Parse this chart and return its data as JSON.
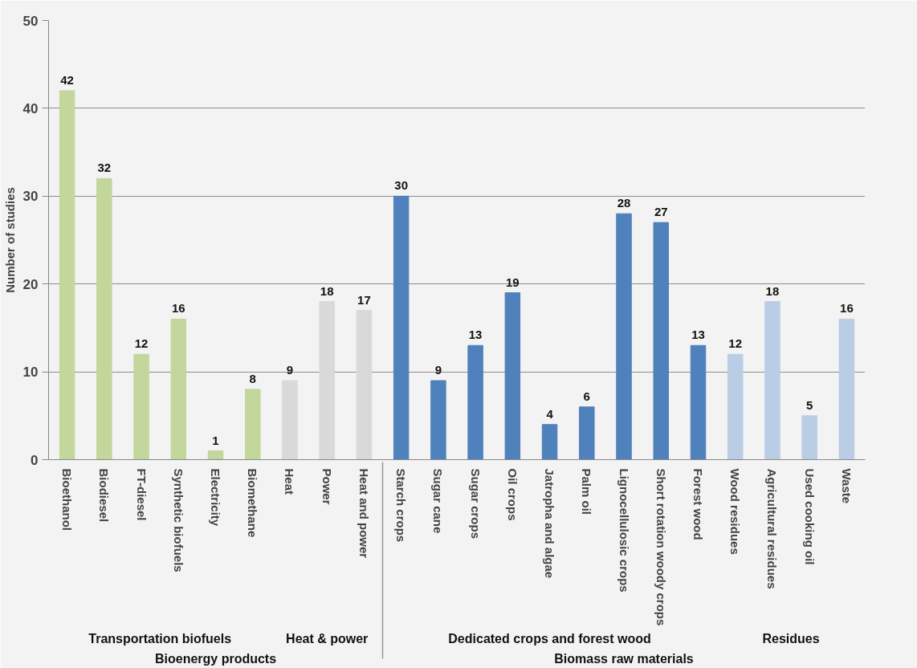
{
  "chart_data": {
    "type": "bar",
    "ylabel": "Number of studies",
    "categories": [
      "Bioethanol",
      "Biodiesel",
      "FT-diesel",
      "Synthetic biofuels",
      "Electricity",
      "Biomethane",
      "Heat",
      "Power",
      "Heat and power",
      "Starch crops",
      "Sugar cane",
      "Sugar crops",
      "Oil crops",
      "Jatropha and algae",
      "Palm oil",
      "Lignocellulosic crops",
      "Short rotation woody crops",
      "Forest wood",
      "Wood residues",
      "Agricultural residues",
      "Used cooking oil",
      "Waste"
    ],
    "values": [
      42,
      32,
      12,
      16,
      1,
      8,
      9,
      18,
      17,
      30,
      9,
      13,
      19,
      4,
      6,
      28,
      27,
      13,
      12,
      18,
      5,
      16
    ],
    "colors": [
      "#c3d69b",
      "#c3d69b",
      "#c3d69b",
      "#c3d69b",
      "#c3d69b",
      "#c3d69b",
      "#d9d9d9",
      "#d9d9d9",
      "#d9d9d9",
      "#4f81bd",
      "#4f81bd",
      "#4f81bd",
      "#4f81bd",
      "#4f81bd",
      "#4f81bd",
      "#4f81bd",
      "#4f81bd",
      "#4f81bd",
      "#b9cde5",
      "#b9cde5",
      "#b9cde5",
      "#b9cde5"
    ],
    "ylim": [
      0,
      50
    ],
    "yticks": [
      0,
      10,
      20,
      30,
      40,
      50
    ],
    "grid": "y",
    "data_labels": true,
    "annotations": [
      "Transportation biofuels",
      "Heat & power",
      "Dedicated crops and forest wood",
      "Residues",
      "Bioenergy products",
      "Biomass raw materials"
    ]
  }
}
